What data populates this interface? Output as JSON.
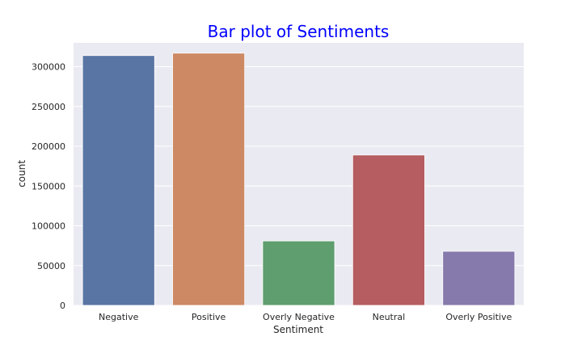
{
  "chart_data": {
    "type": "bar",
    "title": "Bar plot of Sentiments",
    "xlabel": "Sentiment",
    "ylabel": "count",
    "categories": [
      "Negative",
      "Positive",
      "Overly Negative",
      "Neutral",
      "Overly Positive"
    ],
    "values": [
      314000,
      317000,
      81000,
      189000,
      68000
    ],
    "ylim": [
      0,
      330000
    ],
    "yticks": [
      0,
      50000,
      100000,
      150000,
      200000,
      250000,
      300000
    ],
    "ytick_labels": [
      "0",
      "50000",
      "100000",
      "150000",
      "200000",
      "250000",
      "300000"
    ],
    "grid": true,
    "colors": [
      "#5975a4",
      "#cc8963",
      "#5f9e6e",
      "#b55d60",
      "#857aab"
    ],
    "background": "#eaeaf2",
    "title_color": "#0000ff"
  }
}
